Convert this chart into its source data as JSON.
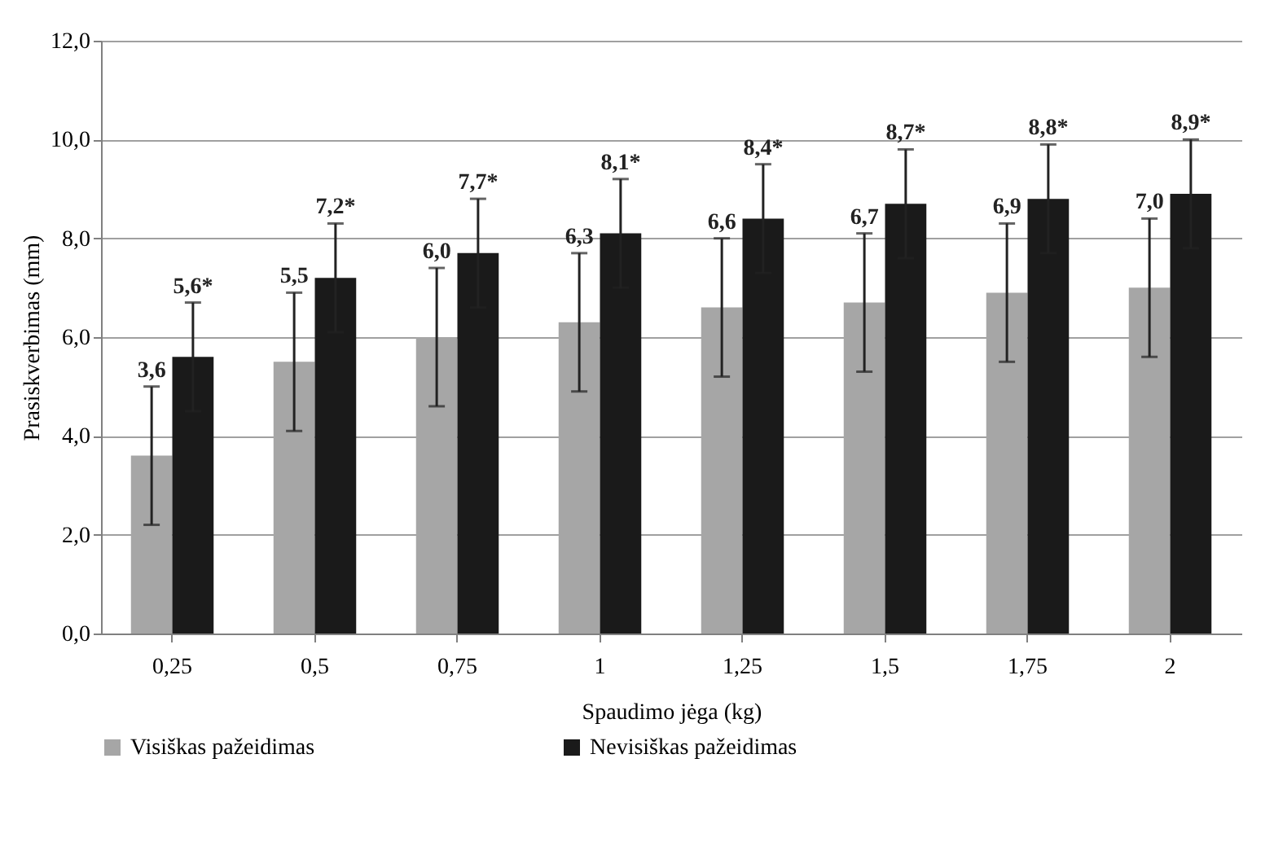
{
  "chart_data": {
    "type": "bar",
    "xlabel": "Spaudimo jėga (kg)",
    "ylabel": "Prasiskverbimas (mm)",
    "categories": [
      "0,25",
      "0,5",
      "0,75",
      "1",
      "1,25",
      "1,5",
      "1,75",
      "2"
    ],
    "series": [
      {
        "name": "Visiškas pažeidimas",
        "color": "#a6a6a6",
        "values": [
          3.6,
          5.5,
          6.0,
          6.3,
          6.6,
          6.7,
          6.9,
          7.0
        ],
        "errors": [
          1.4,
          1.4,
          1.4,
          1.4,
          1.4,
          1.4,
          1.4,
          1.4
        ],
        "value_labels": [
          "3,6",
          "5,5",
          "6,0",
          "6,3",
          "6,6",
          "6,7",
          "6,9",
          "7,0"
        ]
      },
      {
        "name": "Nevisiškas pažeidimas",
        "color": "#1a1a1a",
        "values": [
          5.6,
          7.2,
          7.7,
          8.1,
          8.4,
          8.7,
          8.8,
          8.9
        ],
        "errors": [
          1.1,
          1.1,
          1.1,
          1.1,
          1.1,
          1.1,
          1.1,
          1.1
        ],
        "value_labels": [
          "5,6*",
          "7,2*",
          "7,7*",
          "8,1*",
          "8,4*",
          "8,7*",
          "8,8*",
          "8,9*"
        ]
      }
    ],
    "ylim": [
      0,
      12
    ],
    "yticks": [
      {
        "value": 0,
        "label": "0,0"
      },
      {
        "value": 2,
        "label": "2,0"
      },
      {
        "value": 4,
        "label": "4,0"
      },
      {
        "value": 6,
        "label": "6,0"
      },
      {
        "value": 8,
        "label": "8,0"
      },
      {
        "value": 10,
        "label": "10,0"
      },
      {
        "value": 12,
        "label": "12,0"
      }
    ],
    "grid": "y",
    "legend": "bottom"
  }
}
